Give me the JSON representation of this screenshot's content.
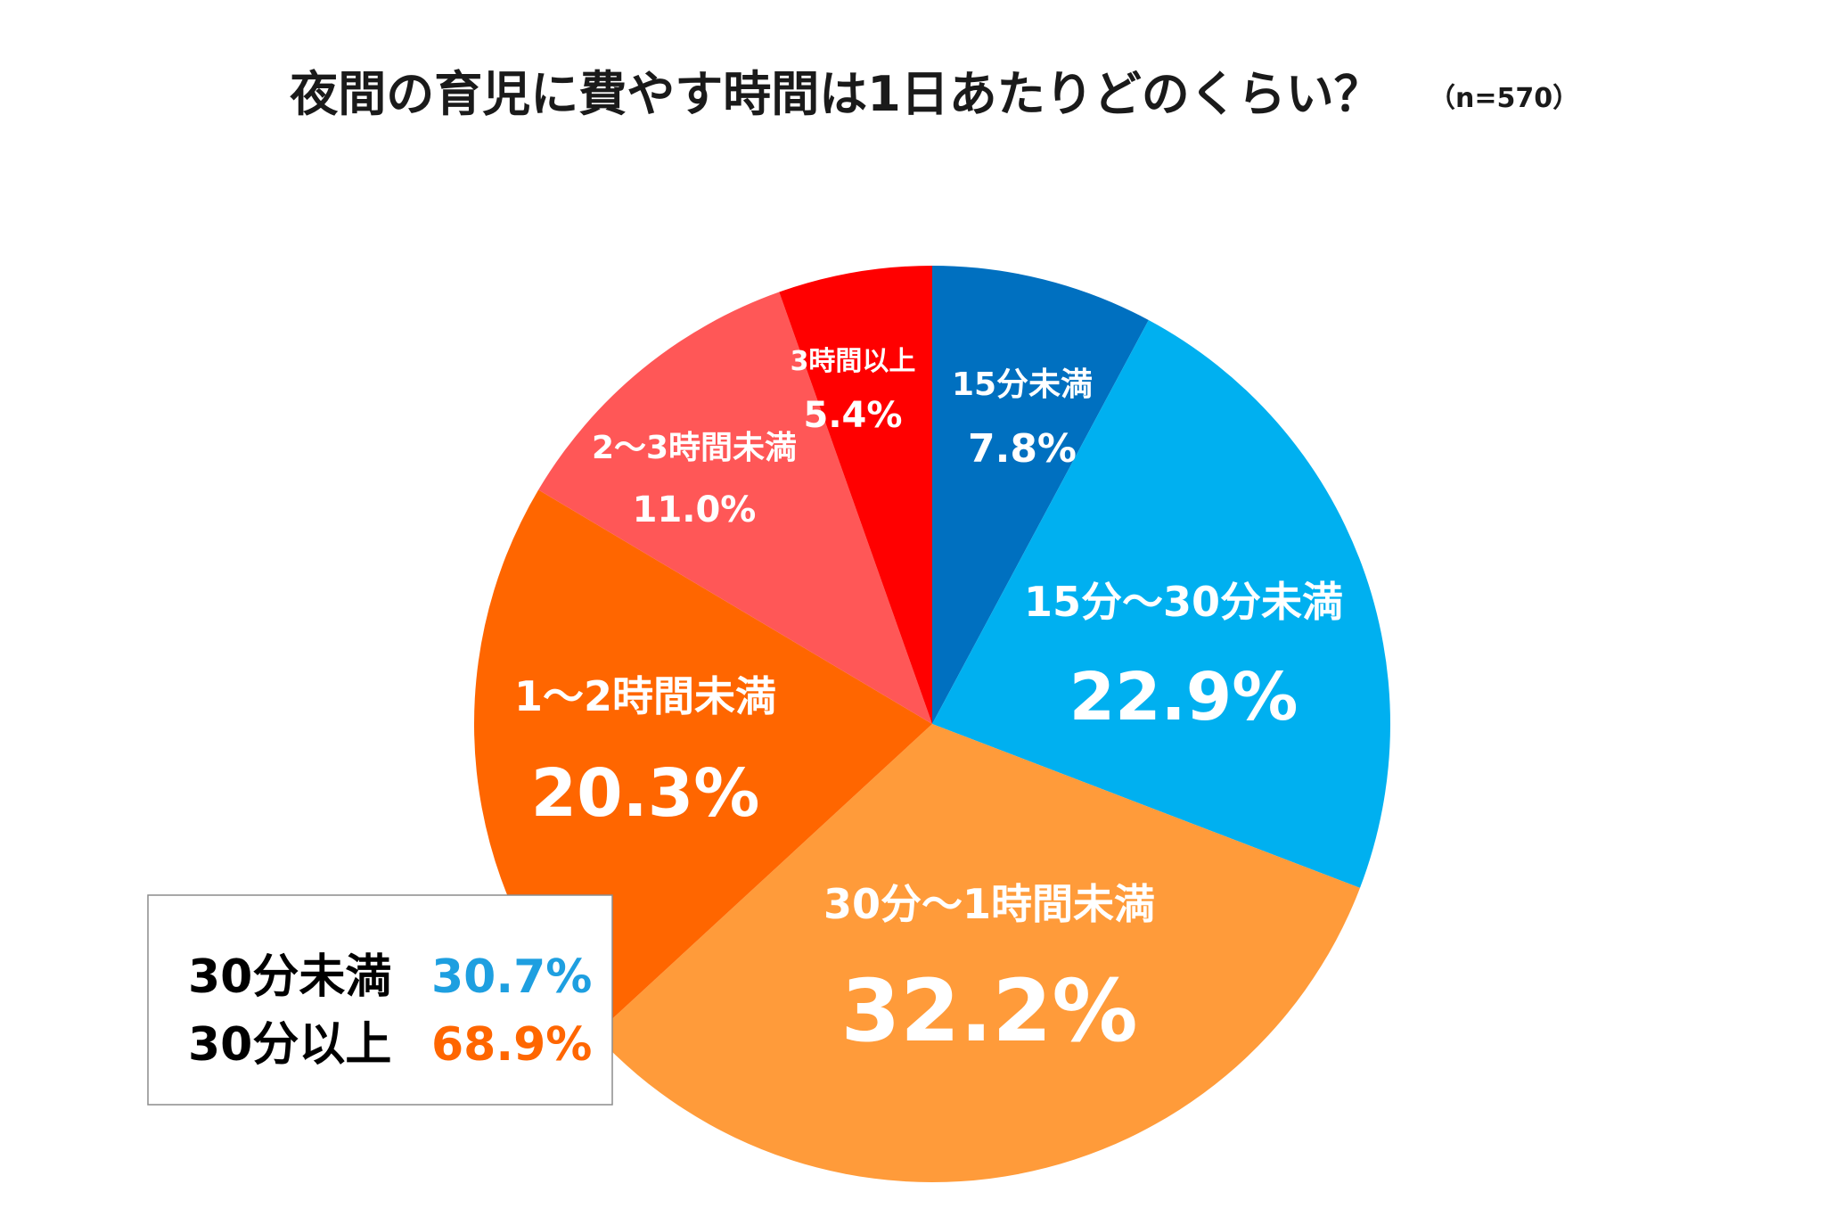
{
  "chart_data": {
    "type": "pie",
    "title": "夜間の育児に費やす時間は1日あたりどのくらい？",
    "subtitle": "（n=570）",
    "categories": [
      "15分未満",
      "15分～30分未満",
      "30分～1時間未満",
      "1～2時間未満",
      "2～3時間未満",
      "3時間以上"
    ],
    "values": [
      7.8,
      22.9,
      32.2,
      20.3,
      11.0,
      5.4
    ],
    "value_labels": [
      "7.8%",
      "22.9%",
      "32.2%",
      "20.3%",
      "11.0%",
      "5.4%"
    ],
    "colors": [
      "#0070C0",
      "#00B0F0",
      "#FF9B3A",
      "#FF6600",
      "#FF5757",
      "#FF0000"
    ],
    "start_angle": "12 o'clock",
    "direction": "clockwise"
  },
  "summary": {
    "rows": [
      {
        "label": "30分未満",
        "value": "30.7%",
        "color": "#1E9FE0"
      },
      {
        "label": "30分以上",
        "value": "68.9%",
        "color": "#FF6600"
      }
    ]
  }
}
